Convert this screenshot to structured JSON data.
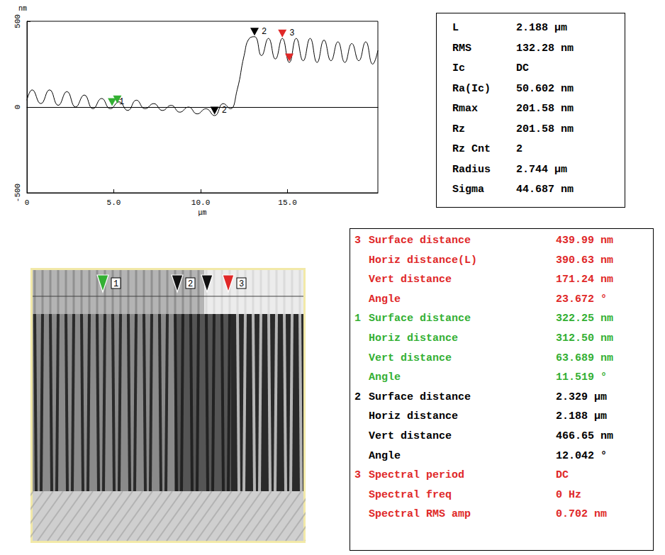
{
  "chart_data": {
    "type": "line",
    "x_label": "μm",
    "y_label": "nm",
    "x": [
      0,
      0.3,
      0.8,
      1.3,
      1.8,
      2.3,
      2.8,
      3.3,
      3.8,
      4.3,
      4.8,
      5.3,
      5.8,
      6.3,
      6.8,
      7.3,
      7.8,
      8.3,
      8.8,
      9.3,
      9.8,
      10.3,
      10.8,
      11.3,
      11.7,
      12.1,
      12.5,
      12.8,
      13.1,
      13.5,
      13.9,
      14.3,
      14.7,
      15.1,
      15.5,
      15.9,
      16.3,
      16.7,
      17.1,
      17.5,
      17.9,
      18.3,
      18.7,
      19.1,
      19.5,
      19.9,
      20.2
    ],
    "values": [
      40,
      100,
      20,
      100,
      10,
      90,
      0,
      70,
      -10,
      50,
      -10,
      30,
      -20,
      40,
      -10,
      20,
      -20,
      10,
      -30,
      0,
      -40,
      -10,
      -50,
      20,
      -10,
      100,
      300,
      400,
      410,
      300,
      400,
      280,
      400,
      260,
      400,
      270,
      400,
      260,
      390,
      270,
      380,
      260,
      370,
      270,
      380,
      250,
      330
    ],
    "color": "#000000",
    "xlim": [
      0,
      20.2
    ],
    "xticks": [
      {
        "value": 0,
        "label": "0"
      },
      {
        "value": 5,
        "label": "5.0"
      },
      {
        "value": 10,
        "label": "10.0"
      },
      {
        "value": 15,
        "label": "15.0"
      }
    ],
    "ylim": [
      -500,
      500
    ],
    "yticks": [
      -500,
      0,
      500
    ],
    "grid": false,
    "annotations": [
      {
        "color": "#33b033",
        "points": [
          {
            "x": 4.9,
            "y": 0,
            "label": "1"
          },
          {
            "x": 5.2,
            "y": 15
          }
        ]
      },
      {
        "color": "#000000",
        "points": [
          {
            "x": 10.8,
            "y": -50,
            "label": "2"
          },
          {
            "x": 13.1,
            "y": 410,
            "label": "2"
          }
        ]
      },
      {
        "color": "#e02828",
        "points": [
          {
            "x": 14.7,
            "y": 400,
            "label": "3"
          },
          {
            "x": 15.1,
            "y": 260
          }
        ]
      }
    ]
  },
  "statistics": {
    "rows": [
      [
        "L",
        "2.188 μm"
      ],
      [
        "RMS",
        "132.28 nm"
      ],
      [
        "Ic",
        "DC"
      ],
      [
        "Ra(Ic)",
        "50.602 nm"
      ],
      [
        "Rmax",
        "201.58 nm"
      ],
      [
        "Rz",
        "201.58 nm"
      ],
      [
        "Rz Cnt",
        "2"
      ],
      [
        "Radius",
        "2.744 μm"
      ],
      [
        "Sigma",
        "44.687 nm"
      ]
    ]
  },
  "marker_results": {
    "groups": [
      {
        "index": "3",
        "color": "#e02828",
        "rows": [
          [
            "Surface distance",
            "439.99 nm"
          ],
          [
            "Horiz distance(L)",
            "390.63 nm"
          ],
          [
            "Vert distance",
            "171.24 nm"
          ],
          [
            "Angle",
            "23.672 °"
          ]
        ]
      },
      {
        "index": "1",
        "color": "#33b033",
        "rows": [
          [
            "Surface distance",
            "322.25 nm"
          ],
          [
            "Horiz distance",
            "312.50 nm"
          ],
          [
            "Vert distance",
            "63.689 nm"
          ],
          [
            "Angle",
            "11.519 °"
          ]
        ]
      },
      {
        "index": "2",
        "color": "#000000",
        "rows": [
          [
            "Surface distance",
            "2.329 μm"
          ],
          [
            "Horiz distance",
            "2.188 μm"
          ],
          [
            "Vert distance",
            "466.65 nm"
          ],
          [
            "Angle",
            "12.042 °"
          ]
        ]
      },
      {
        "index": "3",
        "color": "#e02828",
        "rows": [
          [
            "Spectral period",
            "DC"
          ],
          [
            "Spectral freq",
            "0 Hz"
          ],
          [
            "Spectral RMS amp",
            "0.702 nm"
          ]
        ]
      }
    ]
  }
}
